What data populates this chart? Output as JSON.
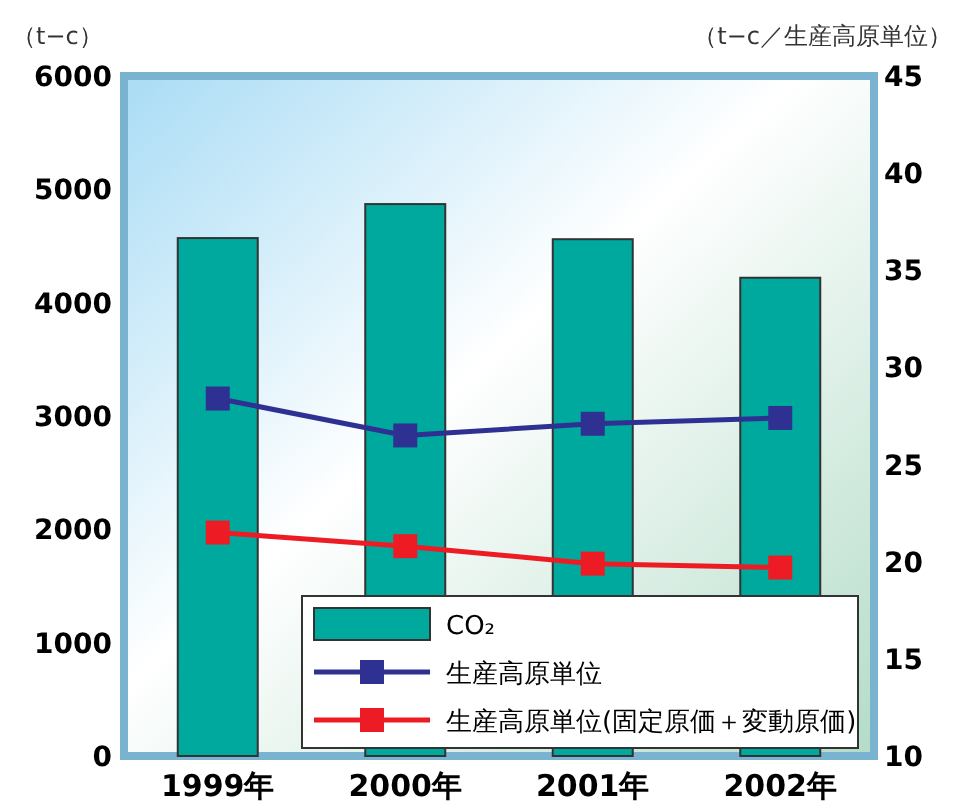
{
  "chart_data": {
    "type": "bar",
    "ylabel": "（t−c）",
    "y2label": "（t−c／生産高原単位）",
    "categories": [
      "1999年",
      "2000年",
      "2001年",
      "2002年"
    ],
    "series": [
      {
        "name": "CO₂",
        "color": "#00a99d",
        "values": [
          4570,
          4870,
          4560,
          4220
        ]
      },
      {
        "name": "生産高原単位",
        "type": "line",
        "axis": "y2",
        "color": "#2e3192",
        "values": [
          28.4,
          26.5,
          27.1,
          27.4
        ]
      },
      {
        "name": "生産高原単位(固定原価＋変動原価)",
        "type": "line",
        "axis": "y2",
        "color": "#ed1c24",
        "values": [
          21.5,
          20.8,
          19.9,
          19.7
        ]
      }
    ],
    "ylim": [
      0,
      6000
    ],
    "yticks": [
      0,
      1000,
      2000,
      3000,
      4000,
      5000,
      6000
    ],
    "y2lim": [
      10,
      45
    ],
    "y2ticks": [
      10,
      15,
      20,
      25,
      30,
      35,
      40,
      45
    ],
    "marker": "square",
    "legend": "bottom right"
  }
}
